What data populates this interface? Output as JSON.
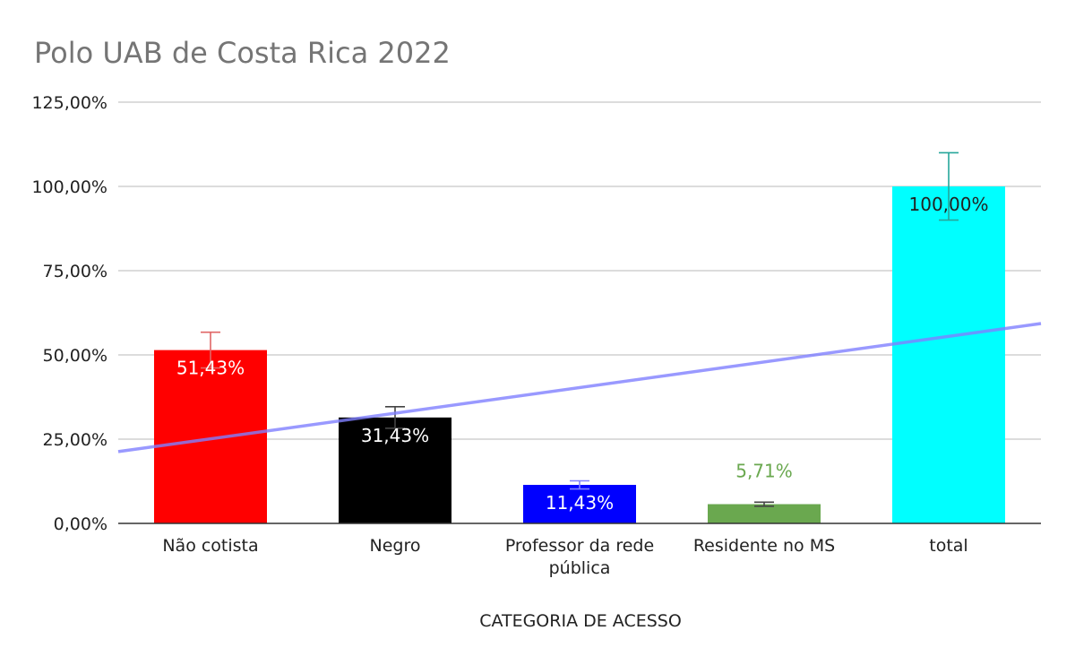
{
  "chart_data": {
    "type": "bar",
    "title": "Polo UAB de Costa Rica 2022",
    "xlabel": "CATEGORIA DE ACESSO",
    "ylabel": "",
    "ylim": [
      0,
      125
    ],
    "yticks": [
      0,
      25,
      50,
      75,
      100,
      125
    ],
    "ytick_labels": [
      "0,00%",
      "25,00%",
      "50,00%",
      "75,00%",
      "100,00%",
      "125,00%"
    ],
    "categories": [
      [
        "Não cotista"
      ],
      [
        "Negro"
      ],
      [
        "Professor da rede",
        "pública"
      ],
      [
        "Residente no MS"
      ],
      [
        "total"
      ]
    ],
    "values": [
      51.43,
      31.43,
      11.43,
      5.71,
      100.0
    ],
    "data_labels": [
      "51,43%",
      "31,43%",
      "11,43%",
      "5,71%",
      "100,00%"
    ],
    "colors": [
      "#ff0000",
      "#000000",
      "#0000ff",
      "#6aa84f",
      "#00ffff"
    ],
    "error_bar_colors": [
      "#e06666",
      "#444444",
      "#8080ff",
      "#444444",
      "#26a69a"
    ],
    "label_colors": [
      "#ffffff",
      "#ffffff",
      "#ffffff",
      "#6aa84f",
      "#222222"
    ],
    "error_plus": [
      5.3,
      3.2,
      1.2,
      0.6,
      10.0
    ],
    "error_minus": [
      5.3,
      3.2,
      1.2,
      0.6,
      10.0
    ],
    "trendline": {
      "type": "linear",
      "color": "#8080ff",
      "start": 21.3,
      "end": 59.3
    },
    "grid": true,
    "legend": "none"
  }
}
